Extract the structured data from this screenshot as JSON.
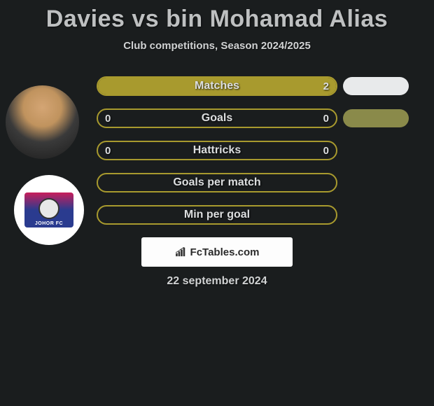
{
  "title": "Davies vs bin Mohamad Alias",
  "subtitle": "Club competitions, Season 2024/2025",
  "date": "22 september 2024",
  "brand": "FcTables.com",
  "theme": {
    "bg": "#1a1d1e",
    "bar_border": "#a89a2e",
    "bar_fill": "#a89a2e",
    "pill_white": "#e8eaeb",
    "pill_olive": "#8a8a4a",
    "text_light": "#dcdedf"
  },
  "rows": [
    {
      "label": "Matches",
      "left_val": "",
      "right_val": "2",
      "fill_mode": "full",
      "left_pct": 0,
      "right_pct": 100,
      "pill": true,
      "pill_color": "#e8eaeb"
    },
    {
      "label": "Goals",
      "left_val": "0",
      "right_val": "0",
      "fill_mode": "none",
      "left_pct": 0,
      "right_pct": 0,
      "pill": true,
      "pill_color": "#8a8a4a"
    },
    {
      "label": "Hattricks",
      "left_val": "0",
      "right_val": "0",
      "fill_mode": "none",
      "left_pct": 0,
      "right_pct": 0,
      "pill": false,
      "pill_color": ""
    },
    {
      "label": "Goals per match",
      "left_val": "",
      "right_val": "",
      "fill_mode": "none",
      "left_pct": 0,
      "right_pct": 0,
      "pill": false,
      "pill_color": ""
    },
    {
      "label": "Min per goal",
      "left_val": "",
      "right_val": "",
      "fill_mode": "none",
      "left_pct": 0,
      "right_pct": 0,
      "pill": false,
      "pill_color": ""
    }
  ],
  "club_label": "JOHOR FC"
}
